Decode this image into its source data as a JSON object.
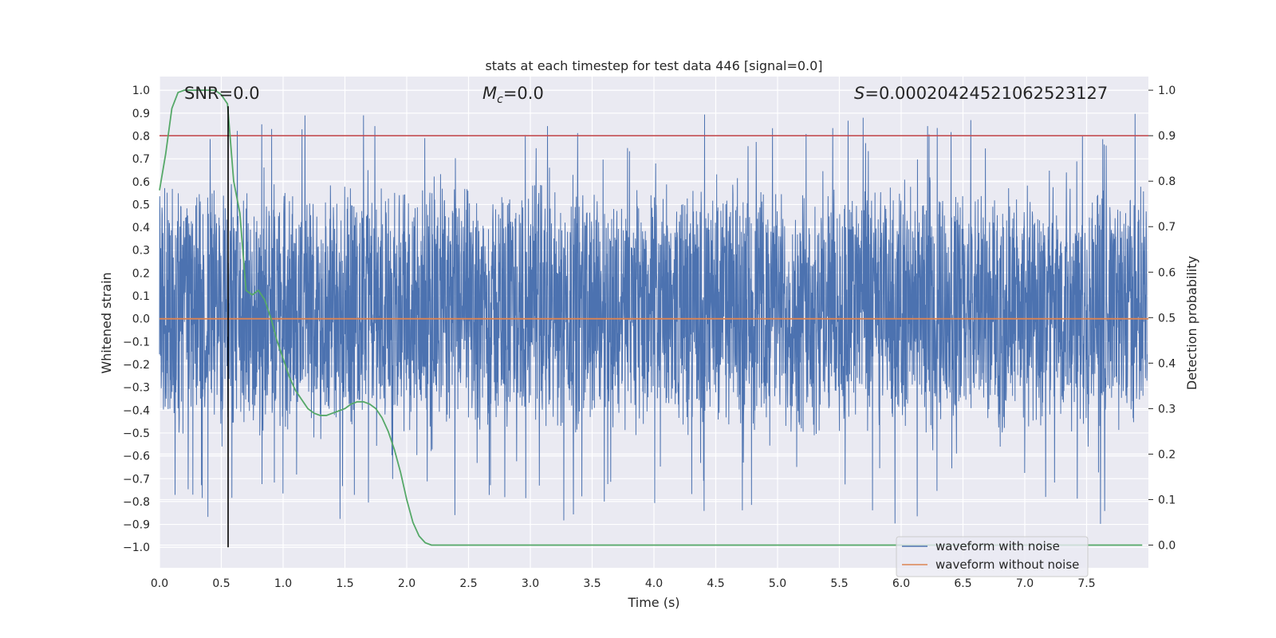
{
  "chart_data": {
    "type": "line",
    "title": "stats at each timestep for test data 446 [signal=0.0]",
    "xlabel": "Time (s)",
    "ylabel": "Whitened strain",
    "y2label": "Detection probability",
    "xlim": [
      0.0,
      8.0
    ],
    "ylim": [
      -1.09,
      1.06
    ],
    "y2lim": [
      -0.05,
      1.03
    ],
    "xticks": [
      "0.0",
      "0.5",
      "1.0",
      "1.5",
      "2.0",
      "2.5",
      "3.0",
      "3.5",
      "4.0",
      "4.5",
      "5.0",
      "5.5",
      "6.0",
      "6.5",
      "7.0",
      "7.5"
    ],
    "yticks": [
      "1.0",
      "0.9",
      "0.8",
      "0.7",
      "0.6",
      "0.5",
      "0.4",
      "0.3",
      "0.2",
      "0.1",
      "0.0",
      "-0.1",
      "-0.2",
      "-0.3",
      "-0.4",
      "-0.5",
      "-0.6",
      "-0.7",
      "-0.8",
      "-0.9",
      "-1.0"
    ],
    "y2ticks": [
      "1.0",
      "0.9",
      "0.8",
      "0.7",
      "0.6",
      "0.5",
      "0.4",
      "0.3",
      "0.2",
      "0.1",
      "0.0"
    ],
    "annotations": {
      "snr": "SNR=0.0",
      "mc_symbol": "M",
      "mc_sub": "c",
      "mc_value": "=0.0",
      "s_symbol": "S",
      "s_value": "=0.00020424521062523127"
    },
    "series": [
      {
        "name": "waveform with noise",
        "color": "#4c72b0",
        "note_on_values": "dense noise, approx uniform in [-0.45, 0.55] with peaks to 0.94 and troughs to -0.97"
      },
      {
        "name": "waveform without noise",
        "color": "#dd8452",
        "values": 0.0
      },
      {
        "color": "#55a868",
        "axis": "right",
        "x": [
          0.0,
          0.05,
          0.1,
          0.15,
          0.2,
          0.3,
          0.4,
          0.45,
          0.5,
          0.55,
          0.6,
          0.65,
          0.7,
          0.75,
          0.8,
          0.85,
          0.9,
          0.95,
          1.0,
          1.05,
          1.1,
          1.15,
          1.2,
          1.25,
          1.3,
          1.35,
          1.4,
          1.45,
          1.5,
          1.55,
          1.6,
          1.65,
          1.7,
          1.75,
          1.8,
          1.85,
          1.9,
          1.95,
          2.0,
          2.05,
          2.1,
          2.15,
          2.2,
          2.5,
          3.0,
          4.0,
          5.0,
          6.0,
          7.0,
          7.5,
          7.95
        ],
        "values": [
          0.78,
          0.86,
          0.96,
          0.995,
          1.0,
          1.0,
          1.0,
          1.0,
          0.99,
          0.97,
          0.8,
          0.73,
          0.56,
          0.55,
          0.56,
          0.54,
          0.5,
          0.45,
          0.41,
          0.37,
          0.34,
          0.32,
          0.3,
          0.29,
          0.285,
          0.285,
          0.29,
          0.295,
          0.3,
          0.31,
          0.315,
          0.315,
          0.31,
          0.3,
          0.28,
          0.25,
          0.21,
          0.16,
          0.1,
          0.05,
          0.02,
          0.005,
          0.0,
          0.0,
          0.0,
          0.0,
          0.0,
          0.0,
          0.0,
          0.0,
          0.0
        ]
      }
    ],
    "threshold": {
      "value": 0.9,
      "axis": "right",
      "color": "#c44e52"
    },
    "vline": {
      "x": 0.555,
      "color": "#000000",
      "ymin": -1.0,
      "ymax": 0.93
    },
    "legend": "lower right",
    "grid": true
  }
}
